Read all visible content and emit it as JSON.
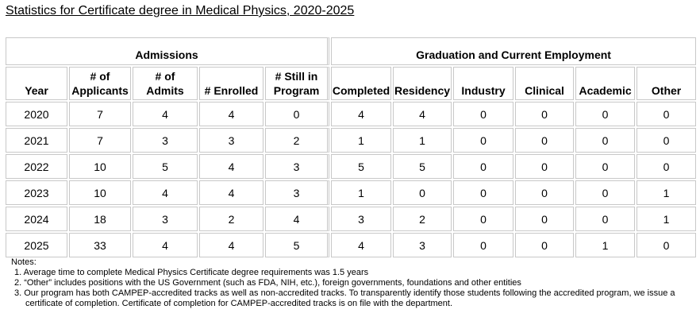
{
  "title": "Statistics for Certificate degree in Medical Physics, 2020-2025",
  "table": {
    "groups": [
      "Admissions",
      "Graduation and Current Employment"
    ],
    "columns": [
      "Year",
      "# of\nApplicants",
      "# of\nAdmits",
      "# Enrolled",
      "# Still in\nProgram",
      "Completed",
      "Residency",
      "Industry",
      "Clinical",
      "Academic",
      "Other"
    ],
    "rows": [
      [
        2020,
        7,
        4,
        4,
        0,
        4,
        4,
        0,
        0,
        0,
        0
      ],
      [
        2021,
        7,
        3,
        3,
        2,
        1,
        1,
        0,
        0,
        0,
        0
      ],
      [
        2022,
        10,
        5,
        4,
        3,
        5,
        5,
        0,
        0,
        0,
        0
      ],
      [
        2023,
        10,
        4,
        4,
        3,
        1,
        0,
        0,
        0,
        0,
        1
      ],
      [
        2024,
        18,
        3,
        2,
        4,
        3,
        2,
        0,
        0,
        0,
        1
      ],
      [
        2025,
        33,
        4,
        4,
        5,
        4,
        3,
        0,
        0,
        1,
        0
      ]
    ]
  },
  "notes": {
    "heading": "Notes:",
    "items": [
      "1. Average time to complete Medical Physics Certificate degree requirements was 1.5 years",
      "2. “Other” includes positions with the US Government (such as FDA, NIH, etc.), foreign governments, foundations and other entities",
      "3. Our program has both CAMPEP-accredited tracks as well as non-accredited tracks. To transparently identify those students following the accredited program, we issue a certificate of completion. Certificate of completion for CAMPEP-accredited tracks is on file with the department."
    ]
  }
}
